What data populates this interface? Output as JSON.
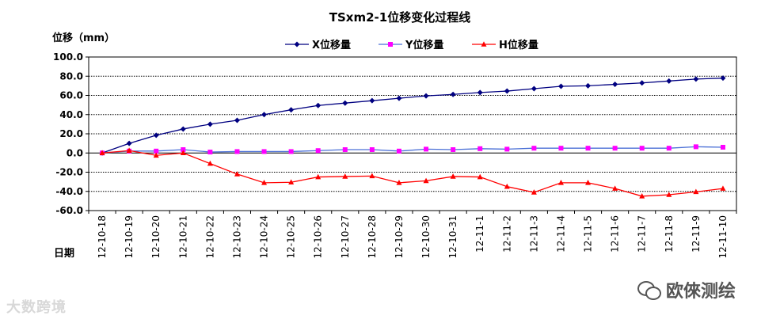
{
  "chart_data": {
    "type": "line",
    "title": "TSxm2-1位移变化过程线",
    "ylabel": "位移（mm）",
    "xlabel": "日期",
    "ylim": [
      -60,
      100
    ],
    "ytick_step": 20,
    "yticks": [
      "100.0",
      "80.0",
      "60.0",
      "40.0",
      "20.0",
      "0.0",
      "-20.0",
      "-40.0",
      "-60.0"
    ],
    "grid": true,
    "legend": "top",
    "categories": [
      "12-10-18",
      "12-10-19",
      "12-10-20",
      "12-10-21",
      "12-10-22",
      "12-10-23",
      "12-10-24",
      "12-10-25",
      "12-10-26",
      "12-10-27",
      "12-10-28",
      "12-10-29",
      "12-10-30",
      "12-10-31",
      "12-11-1",
      "12-11-2",
      "12-11-3",
      "12-11-4",
      "12-11-5",
      "12-11-6",
      "12-11-7",
      "12-11-8",
      "12-11-9",
      "12-11-10"
    ],
    "series": [
      {
        "name": "X位移量",
        "color": "#000080",
        "marker": "diamond",
        "values": [
          0,
          10,
          18.5,
          25,
          30,
          34,
          40,
          45,
          49.5,
          52,
          54.5,
          57,
          59.5,
          61,
          63,
          64.5,
          67,
          69.5,
          70,
          71.5,
          73,
          75,
          77,
          78
        ]
      },
      {
        "name": "Y位移量",
        "color": "#ff00ff",
        "line_color": "#4a6fd6",
        "marker": "square",
        "values": [
          0,
          2,
          2,
          3.5,
          1,
          1.5,
          1.5,
          1.5,
          2.5,
          3.5,
          3.5,
          2,
          4,
          3.5,
          4.5,
          4,
          5,
          5,
          5,
          5,
          5,
          5,
          6.5,
          6
        ]
      },
      {
        "name": "H位移量",
        "color": "#ff0000",
        "marker": "triangle",
        "values": [
          0,
          2.5,
          -2.5,
          0,
          -11,
          -22,
          -31,
          -30.5,
          -25,
          -24.5,
          -24,
          -31,
          -29,
          -24.5,
          -25,
          -35,
          -41,
          -31,
          -31,
          -37,
          -45,
          -43.5,
          -40.5,
          -37
        ]
      }
    ]
  },
  "watermarks": {
    "left": "大数跨境",
    "right": "欧倈测绘"
  }
}
